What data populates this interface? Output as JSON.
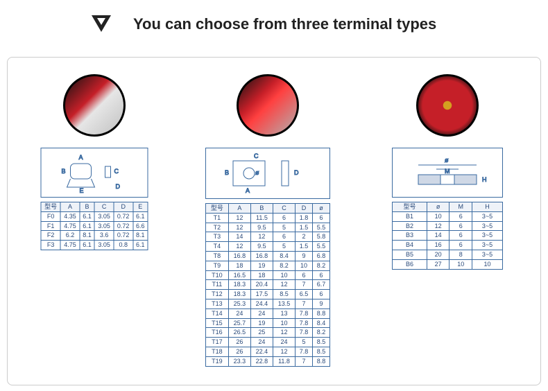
{
  "header": {
    "title": "You can choose from three terminal types"
  },
  "schematics": {
    "s1_labels": [
      "A",
      "B",
      "C",
      "D",
      "E"
    ],
    "s2_labels": [
      "A",
      "B",
      "C",
      "D",
      "ø"
    ],
    "s3_labels": [
      "ø",
      "M",
      "H"
    ]
  },
  "tables": {
    "t1": {
      "headers": [
        "型号",
        "A",
        "B",
        "C",
        "D",
        "E"
      ],
      "rows": [
        [
          "F0",
          "4.35",
          "6.1",
          "3.05",
          "0.72",
          "6.1"
        ],
        [
          "F1",
          "4.75",
          "6.1",
          "3.05",
          "0.72",
          "6.6"
        ],
        [
          "F2",
          "6.2",
          "8.1",
          "3.6",
          "0.72",
          "8.1"
        ],
        [
          "F3",
          "4.75",
          "6.1",
          "3.05",
          "0.8",
          "6.1"
        ]
      ]
    },
    "t2": {
      "headers": [
        "型号",
        "A",
        "B",
        "C",
        "D",
        "ø"
      ],
      "rows": [
        [
          "T1",
          "12",
          "11.5",
          "6",
          "1.8",
          "6"
        ],
        [
          "T2",
          "12",
          "9.5",
          "5",
          "1.5",
          "5.5"
        ],
        [
          "T3",
          "14",
          "12",
          "6",
          "2",
          "5.8"
        ],
        [
          "T4",
          "12",
          "9.5",
          "5",
          "1.5",
          "5.5"
        ],
        [
          "T8",
          "16.8",
          "16.8",
          "8.4",
          "9",
          "6.8"
        ],
        [
          "T9",
          "18",
          "19",
          "8.2",
          "10",
          "8.2"
        ],
        [
          "T10",
          "16.5",
          "18",
          "10",
          "6",
          "6"
        ],
        [
          "T11",
          "18.3",
          "20.4",
          "12",
          "7",
          "6.7"
        ],
        [
          "T12",
          "18.3",
          "17.5",
          "8.5",
          "6.5",
          "6"
        ],
        [
          "T13",
          "25.3",
          "24.4",
          "13.5",
          "7",
          "9"
        ],
        [
          "T14",
          "24",
          "24",
          "13",
          "7.8",
          "8.8"
        ],
        [
          "T15",
          "25.7",
          "19",
          "10",
          "7.8",
          "8.4"
        ],
        [
          "T16",
          "26.5",
          "25",
          "12",
          "7.8",
          "8.2"
        ],
        [
          "T17",
          "26",
          "24",
          "24",
          "5",
          "8.5"
        ],
        [
          "T18",
          "26",
          "22.4",
          "12",
          "7.8",
          "8.5"
        ],
        [
          "T19",
          "23.3",
          "22.8",
          "11.8",
          "7",
          "8.8"
        ]
      ]
    },
    "t3": {
      "headers": [
        "型号",
        "ø",
        "M",
        "H"
      ],
      "rows": [
        [
          "B1",
          "10",
          "6",
          "3~5"
        ],
        [
          "B2",
          "12",
          "6",
          "3~5"
        ],
        [
          "B3",
          "14",
          "6",
          "3~5"
        ],
        [
          "B4",
          "16",
          "6",
          "3~5"
        ],
        [
          "B5",
          "20",
          "8",
          "3~5"
        ],
        [
          "B6",
          "27",
          "10",
          "10"
        ]
      ]
    }
  },
  "colors": {
    "border": "#3a6aa0",
    "text": "#2a4a7a"
  }
}
